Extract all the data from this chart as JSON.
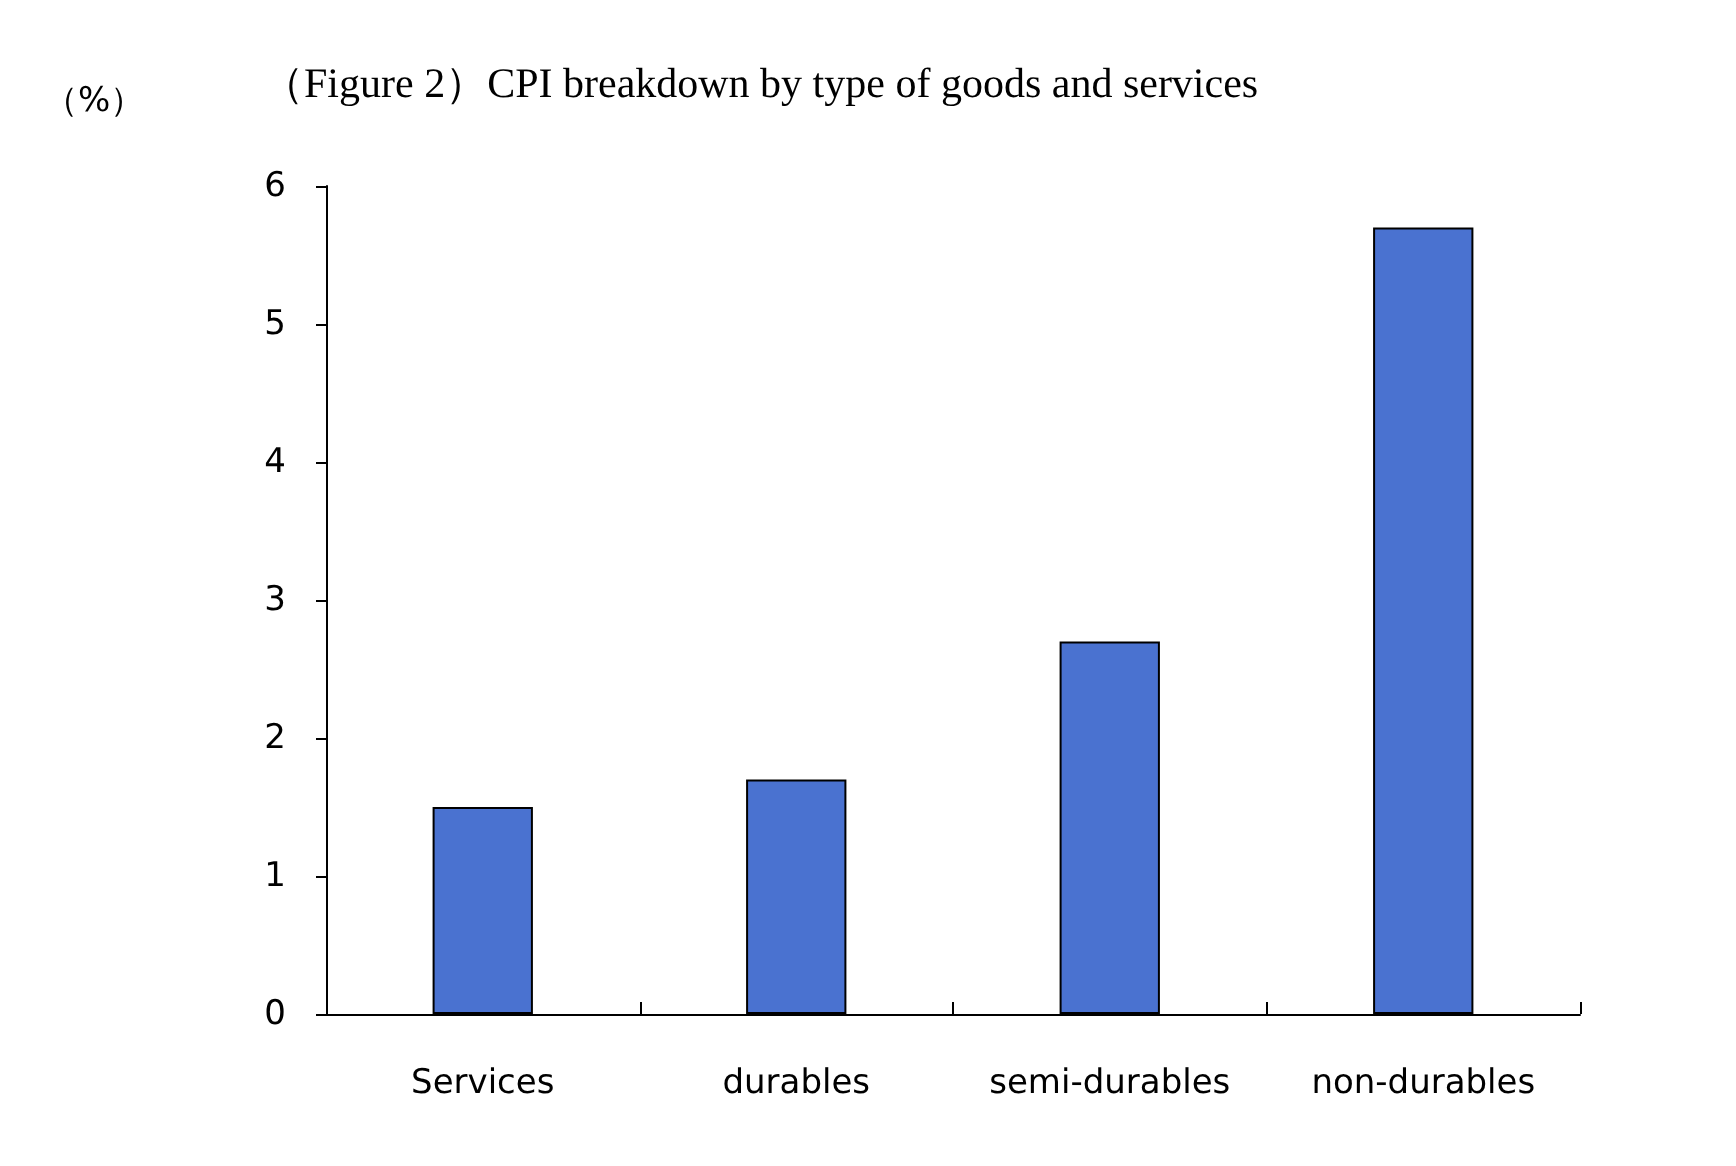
{
  "chart_data": {
    "type": "bar",
    "title": "（Figure 2）CPI breakdown by type of goods and services",
    "ylabel": "（%）",
    "categories": [
      "Services",
      "durables",
      "semi-durables",
      "non-durables"
    ],
    "values": [
      1.5,
      1.7,
      2.7,
      5.7
    ],
    "color": "#4a72d0",
    "ylim": [
      0,
      6
    ],
    "yticks": [
      0,
      1,
      2,
      3,
      4,
      5,
      6
    ],
    "grid": false
  }
}
